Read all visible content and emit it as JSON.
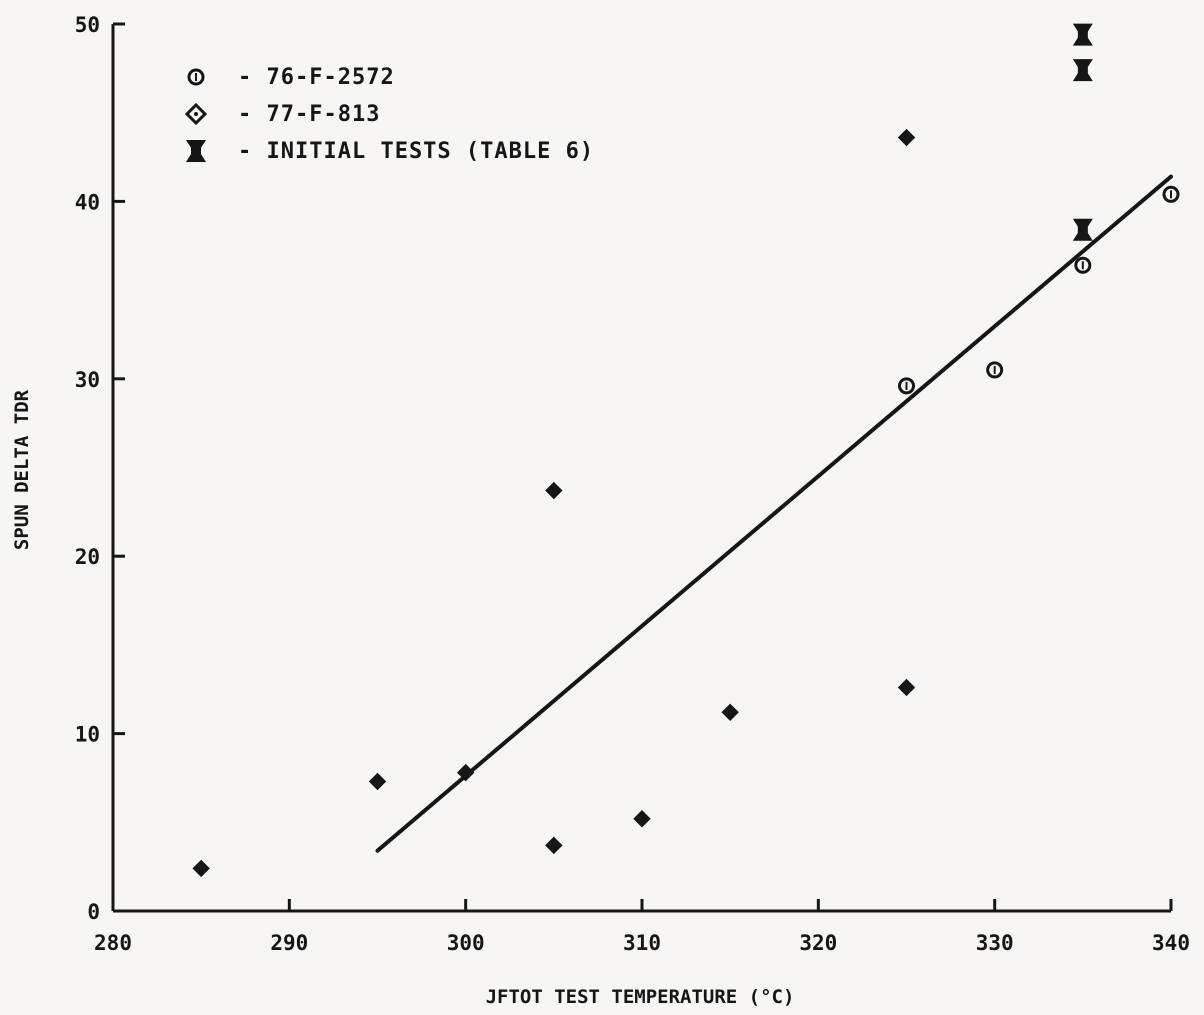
{
  "chart_data": {
    "type": "scatter",
    "title": "",
    "xlabel": "JFTOT TEST TEMPERATURE (°C)",
    "ylabel": "SPUN DELTA TDR",
    "xlim": [
      280,
      340
    ],
    "ylim": [
      0,
      50
    ],
    "x_ticks": [
      280,
      290,
      300,
      310,
      320,
      330,
      340
    ],
    "y_ticks": [
      0,
      10,
      20,
      30,
      40,
      50
    ],
    "grid": false,
    "legend_position": "top-left",
    "series": [
      {
        "name": "- 76-F-2572",
        "marker": "circle-bar",
        "points": [
          {
            "x": 325,
            "y": 29.6
          },
          {
            "x": 330,
            "y": 30.5
          },
          {
            "x": 335,
            "y": 36.4
          },
          {
            "x": 340,
            "y": 40.4
          }
        ]
      },
      {
        "name": "- 77-F-813",
        "marker": "diamond",
        "points": [
          {
            "x": 285,
            "y": 2.4
          },
          {
            "x": 295,
            "y": 7.3
          },
          {
            "x": 300,
            "y": 7.8
          },
          {
            "x": 305,
            "y": 3.7
          },
          {
            "x": 305,
            "y": 23.7
          },
          {
            "x": 310,
            "y": 5.2
          },
          {
            "x": 315,
            "y": 11.2
          },
          {
            "x": 325,
            "y": 12.6
          },
          {
            "x": 325,
            "y": 43.6
          }
        ]
      },
      {
        "name": "- INITIAL TESTS (TABLE 6)",
        "marker": "hourglass",
        "points": [
          {
            "x": 335,
            "y": 49.4
          },
          {
            "x": 335,
            "y": 47.4
          },
          {
            "x": 335,
            "y": 38.4
          }
        ]
      }
    ],
    "trend_line": {
      "x": [
        295,
        340
      ],
      "y": [
        3.4,
        41.4
      ]
    }
  }
}
